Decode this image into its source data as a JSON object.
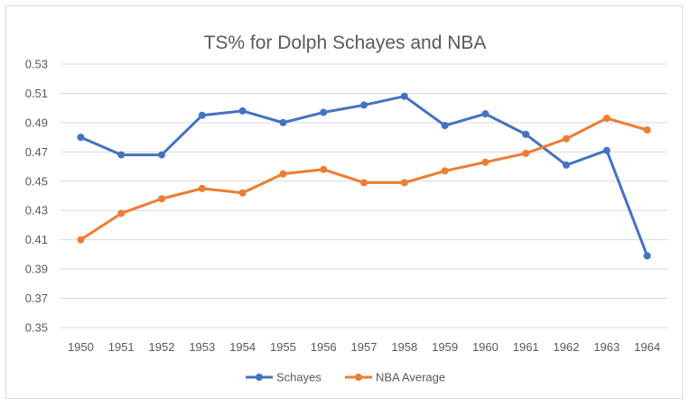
{
  "chart_data": {
    "type": "line",
    "title": "TS% for Dolph Schayes and NBA",
    "xlabel": "",
    "ylabel": "",
    "categories": [
      "1950",
      "1951",
      "1952",
      "1953",
      "1954",
      "1955",
      "1956",
      "1957",
      "1958",
      "1959",
      "1960",
      "1961",
      "1962",
      "1963",
      "1964"
    ],
    "ylim": [
      0.35,
      0.53
    ],
    "yticks": [
      "0.35",
      "0.37",
      "0.39",
      "0.41",
      "0.43",
      "0.45",
      "0.47",
      "0.49",
      "0.51",
      "0.53"
    ],
    "grid": true,
    "legend_position": "bottom",
    "series": [
      {
        "name": "Schayes",
        "color": "#4472c4",
        "values": [
          0.48,
          0.468,
          0.468,
          0.495,
          0.498,
          0.49,
          0.497,
          0.502,
          0.508,
          0.488,
          0.496,
          0.482,
          0.461,
          0.471,
          0.399
        ]
      },
      {
        "name": "NBA Average",
        "color": "#ed7d31",
        "values": [
          0.41,
          0.428,
          0.438,
          0.445,
          0.442,
          0.455,
          0.458,
          0.449,
          0.449,
          0.457,
          0.463,
          0.469,
          0.479,
          0.493,
          0.485
        ]
      }
    ]
  }
}
